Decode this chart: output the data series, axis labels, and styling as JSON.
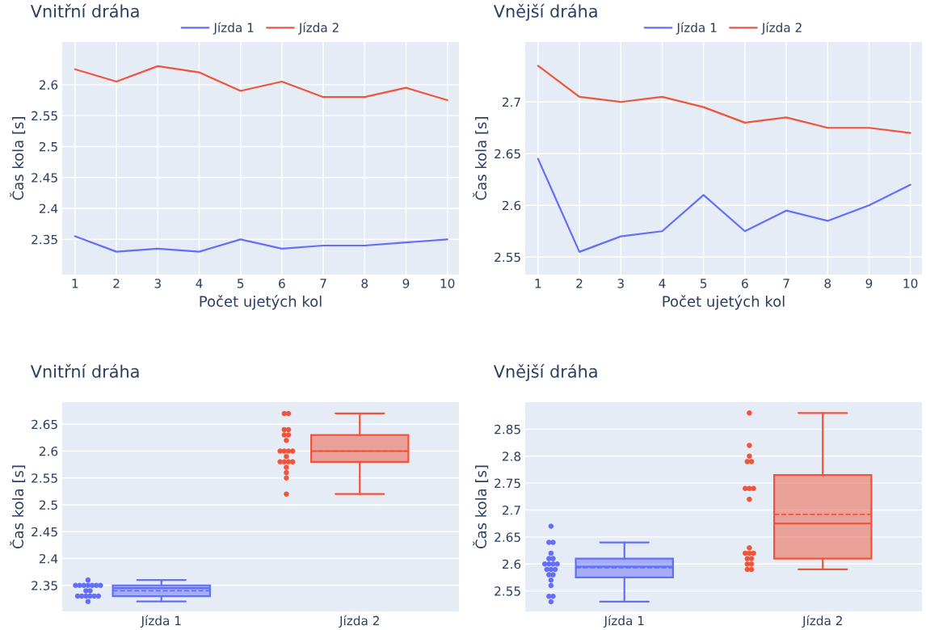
{
  "chart_data": [
    {
      "type": "line",
      "title": "Vnitřní dráha",
      "xlabel": "Počet ujetých kol",
      "ylabel": "Čas kola [s]",
      "x": [
        1,
        2,
        3,
        4,
        5,
        6,
        7,
        8,
        9,
        10
      ],
      "xlim": [
        0.69,
        10.28
      ],
      "xticks": [
        1,
        2,
        3,
        4,
        5,
        6,
        7,
        8,
        9,
        10
      ],
      "ylim": [
        2.293,
        2.669
      ],
      "yticks": [
        2.35,
        2.4,
        2.45,
        2.5,
        2.55,
        2.6
      ],
      "grid": true,
      "legend": "top",
      "marker": "none",
      "line_style": "solid",
      "series": [
        {
          "name": "Jízda 1",
          "color": "#636efa",
          "values": [
            2.355,
            2.33,
            2.335,
            2.33,
            2.35,
            2.335,
            2.34,
            2.34,
            2.345,
            2.35
          ]
        },
        {
          "name": "Jízda 2",
          "color": "#ef553b",
          "values": [
            2.625,
            2.605,
            2.63,
            2.62,
            2.59,
            2.605,
            2.58,
            2.58,
            2.595,
            2.575
          ]
        }
      ]
    },
    {
      "type": "line",
      "title": "Vnější dráha",
      "xlabel": "Počet ujetých kol",
      "ylabel": "Čas kola [s]",
      "x": [
        1,
        2,
        3,
        4,
        5,
        6,
        7,
        8,
        9,
        10
      ],
      "xlim": [
        0.69,
        10.28
      ],
      "xticks": [
        1,
        2,
        3,
        4,
        5,
        6,
        7,
        8,
        9,
        10
      ],
      "ylim": [
        2.533,
        2.758
      ],
      "yticks": [
        2.55,
        2.6,
        2.65,
        2.7
      ],
      "grid": true,
      "legend": "top",
      "marker": "none",
      "line_style": "solid",
      "series": [
        {
          "name": "Jízda 1",
          "color": "#636efa",
          "values": [
            2.645,
            2.555,
            2.57,
            2.575,
            2.61,
            2.575,
            2.595,
            2.585,
            2.6,
            2.62
          ]
        },
        {
          "name": "Jízda 2",
          "color": "#ef553b",
          "values": [
            2.735,
            2.705,
            2.7,
            2.705,
            2.695,
            2.68,
            2.685,
            2.675,
            2.675,
            2.67
          ]
        }
      ]
    },
    {
      "type": "box",
      "title": "Vnitřní dráha",
      "ylabel": "Čas kola [s]",
      "categories": [
        "Jízda 1",
        "Jízda 2"
      ],
      "ylim": [
        2.3015,
        2.691
      ],
      "yticks": [
        2.35,
        2.4,
        2.45,
        2.5,
        2.55,
        2.6,
        2.65
      ],
      "grid": "y",
      "boxes": [
        {
          "low": 2.32,
          "q1": 2.33,
          "median": 2.345,
          "q3": 2.35,
          "high": 2.36,
          "mean": 2.34
        },
        {
          "low": 2.52,
          "q1": 2.58,
          "median": 2.6,
          "q3": 2.63,
          "high": 2.67,
          "mean": 2.6
        }
      ],
      "colors": [
        "#636efa",
        "#ef553b"
      ],
      "series": [
        {
          "type": "scatter",
          "color": "#636efa",
          "x": [
            "Jízda 1",
            "Jízda 1",
            "Jízda 1",
            "Jízda 1",
            "Jízda 1",
            "Jízda 1",
            "Jízda 1",
            "Jízda 1",
            "Jízda 1",
            "Jízda 1",
            "Jízda 1",
            "Jízda 1",
            "Jízda 1",
            "Jízda 1",
            "Jízda 1",
            "Jízda 1",
            "Jízda 1"
          ],
          "values": [
            2.36,
            2.35,
            2.35,
            2.35,
            2.35,
            2.35,
            2.35,
            2.35,
            2.34,
            2.34,
            2.33,
            2.33,
            2.33,
            2.33,
            2.33,
            2.33,
            2.32
          ]
        },
        {
          "type": "scatter",
          "color": "#ef553b",
          "x": [
            "Jízda 2",
            "Jízda 2",
            "Jízda 2",
            "Jízda 2",
            "Jízda 2",
            "Jízda 2",
            "Jízda 2",
            "Jízda 2",
            "Jízda 2",
            "Jízda 2",
            "Jízda 2",
            "Jízda 2",
            "Jízda 2",
            "Jízda 2",
            "Jízda 2",
            "Jízda 2",
            "Jízda 2",
            "Jízda 2",
            "Jízda 2",
            "Jízda 2"
          ],
          "values": [
            2.67,
            2.67,
            2.64,
            2.64,
            2.63,
            2.63,
            2.62,
            2.6,
            2.6,
            2.6,
            2.6,
            2.59,
            2.58,
            2.58,
            2.58,
            2.58,
            2.57,
            2.56,
            2.55,
            2.52
          ]
        }
      ]
    },
    {
      "type": "box",
      "title": "Vnější dráha",
      "ylabel": "Čas kola [s]",
      "categories": [
        "Jízda 1",
        "Jízda 2"
      ],
      "ylim": [
        2.512,
        2.9
      ],
      "yticks": [
        2.55,
        2.6,
        2.65,
        2.7,
        2.75,
        2.8,
        2.85
      ],
      "grid": "y",
      "boxes": [
        {
          "low": 2.53,
          "q1": 2.575,
          "median": 2.595,
          "q3": 2.61,
          "high": 2.64,
          "mean": 2.593
        },
        {
          "low": 2.59,
          "q1": 2.61,
          "median": 2.675,
          "q3": 2.765,
          "high": 2.88,
          "mean": 2.692
        }
      ],
      "colors": [
        "#636efa",
        "#ef553b"
      ],
      "series": [
        {
          "type": "scatter",
          "color": "#636efa",
          "x": [
            "Jízda 1",
            "Jízda 1",
            "Jízda 1",
            "Jízda 1",
            "Jízda 1",
            "Jízda 1",
            "Jízda 1",
            "Jízda 1",
            "Jízda 1",
            "Jízda 1",
            "Jízda 1",
            "Jízda 1",
            "Jízda 1",
            "Jízda 1",
            "Jízda 1",
            "Jízda 1",
            "Jízda 1",
            "Jízda 1",
            "Jízda 1",
            "Jízda 1"
          ],
          "values": [
            2.67,
            2.64,
            2.64,
            2.62,
            2.61,
            2.61,
            2.6,
            2.6,
            2.6,
            2.6,
            2.59,
            2.59,
            2.59,
            2.58,
            2.58,
            2.57,
            2.56,
            2.54,
            2.54,
            2.53
          ]
        },
        {
          "type": "scatter",
          "color": "#ef553b",
          "x": [
            "Jízda 2",
            "Jízda 2",
            "Jízda 2",
            "Jízda 2",
            "Jízda 2",
            "Jízda 2",
            "Jízda 2",
            "Jízda 2",
            "Jízda 2",
            "Jízda 2",
            "Jízda 2",
            "Jízda 2",
            "Jízda 2",
            "Jízda 2",
            "Jízda 2",
            "Jízda 2",
            "Jízda 2",
            "Jízda 2",
            "Jízda 2"
          ],
          "values": [
            2.88,
            2.82,
            2.8,
            2.79,
            2.79,
            2.74,
            2.74,
            2.74,
            2.72,
            2.63,
            2.62,
            2.62,
            2.62,
            2.61,
            2.61,
            2.6,
            2.6,
            2.59,
            2.59
          ]
        }
      ]
    }
  ]
}
